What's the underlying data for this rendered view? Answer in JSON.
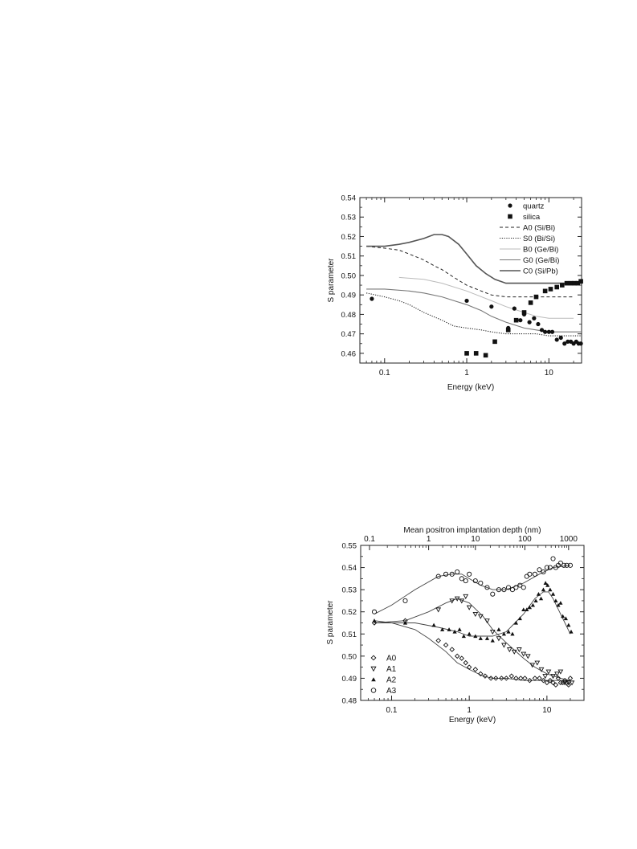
{
  "chart_data": [
    {
      "type": "scatter",
      "xlabel": "Energy (keV)",
      "ylabel": "S parameter",
      "x_scale": "log",
      "xlim": [
        0.05,
        25
      ],
      "ylim": [
        0.455,
        0.54
      ],
      "x_ticks": [
        {
          "v": 0.1,
          "label": "0.1"
        },
        {
          "v": 1,
          "label": "1"
        },
        {
          "v": 10,
          "label": "10"
        }
      ],
      "y_ticks": [
        0.46,
        0.47,
        0.48,
        0.49,
        0.5,
        0.51,
        0.52,
        0.53,
        0.54
      ],
      "y_tick_labels": [
        "0.46",
        "0.47",
        "0.48",
        "0.49",
        "0.50",
        "0.51",
        "0.52",
        "0.53",
        "0.54"
      ],
      "legend_position": "top-right",
      "grid": false,
      "series": [
        {
          "name": "quartz",
          "kind": "points",
          "marker": "filled-circle",
          "x": [
            0.07,
            1.0,
            2.0,
            3.2,
            3.8,
            4.5,
            5.0,
            5.8,
            6.6,
            7.4,
            8.2,
            9.0,
            10.0,
            11.0,
            12.5,
            14.0,
            15.5,
            17.0,
            18.5,
            20.0,
            21.5,
            23.0,
            24.5
          ],
          "y": [
            0.488,
            0.487,
            0.484,
            0.473,
            0.483,
            0.477,
            0.48,
            0.476,
            0.478,
            0.475,
            0.472,
            0.471,
            0.471,
            0.471,
            0.467,
            0.468,
            0.465,
            0.466,
            0.466,
            0.465,
            0.466,
            0.465,
            0.465
          ]
        },
        {
          "name": "silica",
          "kind": "points",
          "marker": "filled-square",
          "x": [
            1.0,
            1.3,
            1.7,
            2.2,
            3.2,
            4.0,
            5.0,
            6.0,
            7.0,
            9.0,
            10.5,
            12.5,
            14.5,
            16.5,
            18.5,
            20.5,
            22.5,
            24.5
          ],
          "y": [
            0.46,
            0.46,
            0.459,
            0.466,
            0.472,
            0.477,
            0.481,
            0.486,
            0.489,
            0.492,
            0.493,
            0.494,
            0.495,
            0.496,
            0.496,
            0.496,
            0.496,
            0.497
          ]
        },
        {
          "name": "A0 (Si/Bi)",
          "kind": "line",
          "style": "dashed",
          "x": [
            0.06,
            0.1,
            0.15,
            0.2,
            0.3,
            0.4,
            0.5,
            0.7,
            1.0,
            1.5,
            2.0,
            3.0,
            5.0,
            7.0,
            10.0,
            15.0,
            20.0
          ],
          "y": [
            0.515,
            0.514,
            0.513,
            0.511,
            0.508,
            0.505,
            0.503,
            0.499,
            0.495,
            0.492,
            0.49,
            0.489,
            0.489,
            0.489,
            0.489,
            0.489,
            0.489
          ]
        },
        {
          "name": "S0 (Bi/Si)",
          "kind": "line",
          "style": "dotted",
          "x": [
            0.06,
            0.1,
            0.15,
            0.2,
            0.3,
            0.5,
            0.7,
            1.0,
            1.5,
            2.0,
            3.0,
            5.0,
            7.0,
            10.0,
            15.0,
            20.0,
            25.0
          ],
          "y": [
            0.491,
            0.489,
            0.487,
            0.485,
            0.481,
            0.477,
            0.474,
            0.473,
            0.472,
            0.471,
            0.47,
            0.47,
            0.47,
            0.469,
            0.469,
            0.469,
            0.469
          ]
        },
        {
          "name": "B0 (Ge/Bi)",
          "kind": "line",
          "style": "light",
          "x": [
            0.15,
            0.3,
            0.5,
            1.0,
            2.0,
            3.0,
            5.0,
            7.0,
            10.0,
            15.0,
            20.0
          ],
          "y": [
            0.499,
            0.498,
            0.496,
            0.492,
            0.487,
            0.484,
            0.481,
            0.479,
            0.478,
            0.478,
            0.478
          ]
        },
        {
          "name": "G0 (Ge/Bi)",
          "kind": "line",
          "style": "solid-gray",
          "x": [
            0.06,
            0.1,
            0.2,
            0.3,
            0.5,
            0.7,
            1.0,
            1.5,
            2.0,
            3.0,
            5.0,
            7.0,
            10.0,
            15.0,
            20.0,
            25.0
          ],
          "y": [
            0.493,
            0.493,
            0.492,
            0.491,
            0.489,
            0.487,
            0.485,
            0.482,
            0.479,
            0.476,
            0.473,
            0.472,
            0.471,
            0.471,
            0.471,
            0.471
          ]
        },
        {
          "name": "C0 (Si/Pb)",
          "kind": "line",
          "style": "solid-dark",
          "x": [
            0.06,
            0.1,
            0.15,
            0.2,
            0.3,
            0.4,
            0.5,
            0.6,
            0.8,
            1.0,
            1.3,
            1.7,
            2.2,
            3.0,
            5.0,
            7.0,
            10.0,
            15.0,
            20.0,
            25.0
          ],
          "y": [
            0.515,
            0.515,
            0.516,
            0.517,
            0.519,
            0.521,
            0.521,
            0.52,
            0.516,
            0.511,
            0.505,
            0.501,
            0.498,
            0.496,
            0.496,
            0.496,
            0.496,
            0.496,
            0.496,
            0.496
          ]
        }
      ]
    },
    {
      "type": "scatter",
      "xlabel": "Energy (keV)",
      "ylabel": "S parameter",
      "x2label": "Mean  positron implantation depth (nm)",
      "x_scale": "log",
      "xlim": [
        0.04,
        30
      ],
      "ylim": [
        0.48,
        0.55
      ],
      "x_ticks": [
        {
          "v": 0.1,
          "label": "0.1"
        },
        {
          "v": 1,
          "label": "1"
        },
        {
          "v": 10,
          "label": "10"
        }
      ],
      "x2_ticks": [
        {
          "v": 0.052,
          "label": "0.1"
        },
        {
          "v": 0.3,
          "label": "1"
        },
        {
          "v": 1.2,
          "label": "10"
        },
        {
          "v": 5.2,
          "label": "100"
        },
        {
          "v": 19,
          "label": "1000"
        }
      ],
      "y_ticks": [
        0.48,
        0.49,
        0.5,
        0.51,
        0.52,
        0.53,
        0.54,
        0.55
      ],
      "y_tick_labels": [
        "0.48",
        "0.49",
        "0.50",
        "0.51",
        "0.52",
        "0.53",
        "0.54",
        "0.55"
      ],
      "legend_position": "bottom-left",
      "grid": false,
      "series": [
        {
          "name": "A0",
          "marker": "open-diamond",
          "points_x": [
            0.06,
            0.15,
            0.4,
            0.5,
            0.6,
            0.7,
            0.8,
            0.9,
            1.0,
            1.2,
            1.4,
            1.6,
            1.9,
            2.2,
            2.6,
            3.0,
            3.5,
            4.0,
            4.6,
            5.2,
            6.0,
            7.0,
            8.0,
            9.0,
            10.0,
            11.0,
            12.0,
            13.0,
            14.0,
            15.0,
            16.0,
            17.0,
            18.0,
            19.0,
            20.0
          ],
          "points_y": [
            0.515,
            0.516,
            0.507,
            0.505,
            0.503,
            0.5,
            0.499,
            0.497,
            0.495,
            0.494,
            0.492,
            0.491,
            0.49,
            0.49,
            0.49,
            0.49,
            0.491,
            0.49,
            0.49,
            0.49,
            0.489,
            0.49,
            0.49,
            0.489,
            0.488,
            0.489,
            0.488,
            0.487,
            0.49,
            0.488,
            0.488,
            0.489,
            0.488,
            0.487,
            0.49
          ],
          "fit_x": [
            0.06,
            0.1,
            0.2,
            0.3,
            0.5,
            0.7,
            1.0,
            1.5,
            2.0,
            3.0,
            5.0,
            10.0,
            20.0
          ],
          "fit_y": [
            0.516,
            0.515,
            0.512,
            0.508,
            0.502,
            0.497,
            0.494,
            0.491,
            0.49,
            0.49,
            0.489,
            0.489,
            0.489
          ]
        },
        {
          "name": "A1",
          "marker": "open-triangle-down",
          "points_x": [
            0.4,
            0.6,
            0.7,
            0.8,
            0.9,
            1.0,
            1.2,
            1.4,
            1.7,
            2.0,
            2.4,
            2.8,
            3.3,
            3.8,
            4.4,
            5.0,
            5.7,
            6.5,
            7.5,
            8.5,
            9.5,
            10.5,
            12.0,
            13.5,
            15.0,
            17.0,
            19.0,
            21.0
          ],
          "points_y": [
            0.521,
            0.525,
            0.526,
            0.525,
            0.527,
            0.522,
            0.519,
            0.518,
            0.516,
            0.511,
            0.508,
            0.505,
            0.503,
            0.502,
            0.503,
            0.501,
            0.5,
            0.496,
            0.497,
            0.494,
            0.491,
            0.493,
            0.491,
            0.492,
            0.493,
            0.488,
            0.488,
            0.488
          ],
          "fit_x": [
            0.06,
            0.15,
            0.3,
            0.5,
            0.7,
            1.0,
            1.5,
            2.0,
            3.0,
            5.0,
            7.0,
            10.0,
            15.0,
            20.0
          ],
          "fit_y": [
            0.515,
            0.516,
            0.52,
            0.524,
            0.526,
            0.524,
            0.518,
            0.512,
            0.506,
            0.499,
            0.495,
            0.492,
            0.49,
            0.489
          ]
        },
        {
          "name": "A2",
          "marker": "filled-triangle-up",
          "points_x": [
            0.06,
            0.15,
            0.35,
            0.45,
            0.55,
            0.65,
            0.75,
            0.85,
            1.0,
            1.2,
            1.4,
            1.7,
            2.0,
            2.4,
            2.8,
            3.2,
            3.6,
            4.0,
            4.5,
            5.0,
            5.5,
            6.0,
            6.6,
            7.2,
            7.8,
            8.4,
            9.0,
            9.6,
            10.2,
            11.0,
            12.0,
            13.0,
            14.0,
            15.0,
            16.0,
            17.5,
            19.0,
            20.5
          ],
          "points_y": [
            0.516,
            0.515,
            0.514,
            0.512,
            0.512,
            0.511,
            0.512,
            0.509,
            0.51,
            0.509,
            0.508,
            0.508,
            0.507,
            0.512,
            0.51,
            0.511,
            0.51,
            0.515,
            0.517,
            0.521,
            0.521,
            0.522,
            0.523,
            0.525,
            0.528,
            0.526,
            0.53,
            0.533,
            0.532,
            0.53,
            0.528,
            0.525,
            0.523,
            0.524,
            0.518,
            0.517,
            0.514,
            0.511
          ],
          "fit_x": [
            0.06,
            0.1,
            0.2,
            0.4,
            0.7,
            1.0,
            1.5,
            2.0,
            3.0,
            5.0,
            7.0,
            9.0,
            10.5,
            12.0,
            15.0,
            20.0
          ],
          "fit_y": [
            0.515,
            0.515,
            0.515,
            0.513,
            0.511,
            0.509,
            0.509,
            0.509,
            0.511,
            0.519,
            0.526,
            0.529,
            0.529,
            0.526,
            0.519,
            0.51
          ]
        },
        {
          "name": "A3",
          "marker": "open-circle",
          "points_x": [
            0.06,
            0.15,
            0.4,
            0.5,
            0.6,
            0.7,
            0.8,
            0.9,
            1.0,
            1.2,
            1.4,
            1.7,
            2.0,
            2.4,
            2.8,
            3.2,
            3.6,
            4.0,
            4.5,
            5.0,
            5.5,
            6.0,
            7.0,
            8.0,
            9.0,
            10.0,
            11.0,
            12.0,
            13.0,
            14.0,
            15.0,
            16.5,
            18.0,
            20.0
          ],
          "points_y": [
            0.52,
            0.525,
            0.536,
            0.537,
            0.537,
            0.538,
            0.535,
            0.534,
            0.537,
            0.534,
            0.533,
            0.531,
            0.528,
            0.53,
            0.53,
            0.531,
            0.53,
            0.531,
            0.532,
            0.531,
            0.536,
            0.537,
            0.537,
            0.539,
            0.538,
            0.54,
            0.54,
            0.544,
            0.54,
            0.541,
            0.542,
            0.541,
            0.541,
            0.541
          ],
          "fit_x": [
            0.06,
            0.1,
            0.2,
            0.4,
            0.6,
            0.8,
            1.0,
            1.4,
            2.0,
            3.0,
            5.0,
            8.0,
            12.0,
            20.0
          ],
          "fit_y": [
            0.519,
            0.523,
            0.53,
            0.536,
            0.537,
            0.537,
            0.535,
            0.532,
            0.53,
            0.53,
            0.533,
            0.537,
            0.54,
            0.541
          ]
        }
      ]
    }
  ]
}
